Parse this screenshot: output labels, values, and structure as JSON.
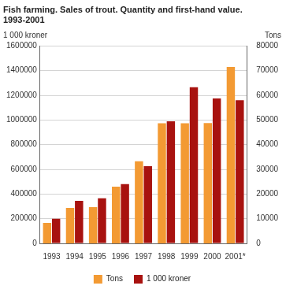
{
  "chart_data": {
    "type": "bar",
    "title": [
      "Fish farming. Sales of trout. Quantity and first-hand value.",
      "1993-2001"
    ],
    "categories": [
      "1993",
      "1994",
      "1995",
      "1996",
      "1997",
      "1998",
      "1999",
      "2000",
      "2001*"
    ],
    "series": [
      {
        "name": "Tons",
        "color": "#f39a33",
        "axis": "y2",
        "values": [
          8300,
          14400,
          14700,
          23000,
          33300,
          48700,
          48700,
          48800,
          71500
        ]
      },
      {
        "name": "1 000 kroner",
        "color": "#a8120f",
        "values": [
          200000,
          345000,
          365000,
          480000,
          625000,
          990000,
          1265000,
          1175000,
          1160000
        ]
      }
    ],
    "y_label": "1 000 kroner",
    "y2_label": "Tons",
    "ylim": [
      0,
      1600000
    ],
    "yticks": [
      0,
      200000,
      400000,
      600000,
      800000,
      1000000,
      1200000,
      1400000,
      1600000
    ],
    "y2lim": [
      0,
      80000
    ],
    "y2ticks": [
      0,
      10000,
      20000,
      30000,
      40000,
      50000,
      60000,
      70000,
      80000
    ],
    "grid": true,
    "legend": "bottom"
  }
}
